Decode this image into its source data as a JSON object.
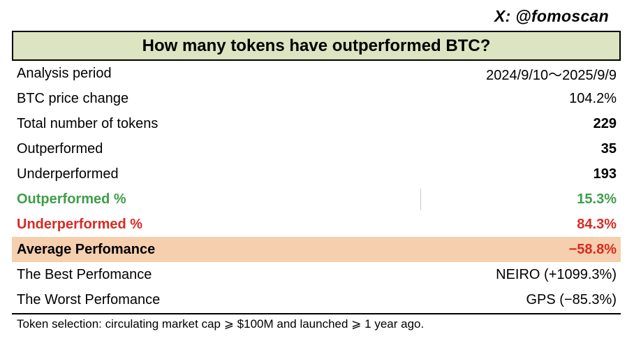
{
  "watermark": "X: @fomoscan",
  "title": "How many tokens have outperformed BTC?",
  "rows": [
    {
      "label": "Analysis period",
      "value": "2024/9/10～2025/9/9"
    },
    {
      "label": "BTC price change",
      "value": "104.2%"
    },
    {
      "label": "Total number of tokens",
      "value": "229"
    },
    {
      "label": "Outperformed",
      "value": "35"
    },
    {
      "label": "Underperformed",
      "value": "193"
    },
    {
      "label": "Outperformed %",
      "value": "15.3%"
    },
    {
      "label": "Underperformed %",
      "value": "84.3%"
    },
    {
      "label": "Average Perfomance",
      "value": "−58.8%"
    },
    {
      "label": "The Best Perfomance",
      "value": "NEIRO (+1099.3%)"
    },
    {
      "label": "The Worst Perfomance",
      "value": "GPS (−85.3%)"
    }
  ],
  "footnote": "Token selection: circulating market cap ⩾ $100M and launched ⩾ 1 year ago.",
  "colors": {
    "title_bg": "#dce4c1",
    "highlight_bg": "#f5cfae",
    "green": "#3f9e4a",
    "red": "#d92a22"
  }
}
